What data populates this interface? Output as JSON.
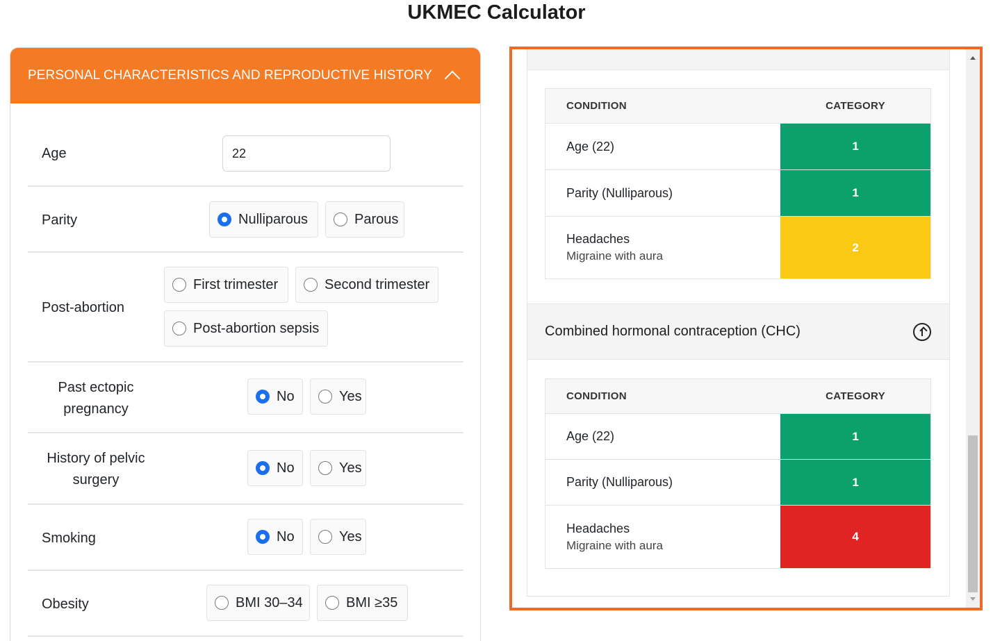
{
  "title": "UKMEC Calculator",
  "panel": {
    "header": "PERSONAL CHARACTERISTICS AND REPRODUCTIVE HISTORY",
    "age": {
      "label": "Age",
      "value": "22"
    },
    "parity": {
      "label": "Parity",
      "options": [
        "Nulliparous",
        "Parous"
      ],
      "selected": "Nulliparous"
    },
    "post_abortion": {
      "label": "Post-abortion",
      "options": [
        "First trimester",
        "Second trimester",
        "Post-abortion sepsis"
      ],
      "selected": ""
    },
    "past_ectopic": {
      "label_line1": "Past ectopic",
      "label_line2": "pregnancy",
      "options": [
        "No",
        "Yes"
      ],
      "selected": "No"
    },
    "pelvic_surgery": {
      "label_line1": "History of pelvic",
      "label_line2": "surgery",
      "options": [
        "No",
        "Yes"
      ],
      "selected": "No"
    },
    "smoking": {
      "label": "Smoking",
      "options": [
        "No",
        "Yes"
      ],
      "selected": "No"
    },
    "obesity": {
      "label": "Obesity",
      "options": [
        "BMI 30–34",
        "BMI ≥35"
      ],
      "selected": ""
    }
  },
  "results": {
    "table1": {
      "headers": [
        "CONDITION",
        "CATEGORY"
      ],
      "rows": [
        {
          "condition": "Age (22)",
          "detail": "",
          "category": "1",
          "color": "#0ca06c"
        },
        {
          "condition": "Parity (Nulliparous)",
          "detail": "",
          "category": "1",
          "color": "#0ca06c"
        },
        {
          "condition": "Headaches",
          "detail": "Migraine with aura",
          "category": "2",
          "color": "#f9c913"
        }
      ]
    },
    "chc": {
      "title": "Combined hormonal contraception (CHC)",
      "headers": [
        "CONDITION",
        "CATEGORY"
      ],
      "rows": [
        {
          "condition": "Age (22)",
          "detail": "",
          "category": "1",
          "color": "#0ca06c"
        },
        {
          "condition": "Parity (Nulliparous)",
          "detail": "",
          "category": "1",
          "color": "#0ca06c"
        },
        {
          "condition": "Headaches",
          "detail": "Migraine with aura",
          "category": "4",
          "color": "#e02424"
        }
      ]
    }
  }
}
